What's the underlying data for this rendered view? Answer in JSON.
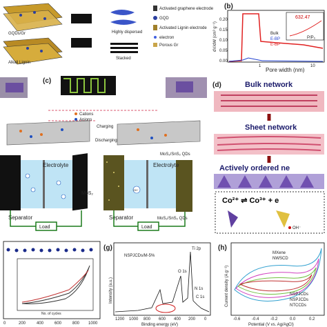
{
  "panels": {
    "a": {
      "labels": [
        "GQDs/Gr",
        "Alkali Lignin",
        "Highly dispersed",
        "Stacked"
      ],
      "legend": [
        "Activated graphene electrode",
        "GQD",
        "Activated Lignin electrode",
        "electron",
        "Porous Gr"
      ]
    },
    "b": {
      "tag": "(b)",
      "y_axis": "dV/dW (cm³ g⁻¹)",
      "x_axis": "Pore width (nm)",
      "x_ticks": [
        "1",
        "10"
      ],
      "y_ticks": [
        "0.00",
        "0.05",
        "0.10",
        "0.15",
        "0.20"
      ],
      "legend": [
        "Bulk",
        "E-BP",
        "E-BP"
      ],
      "inset_value": "632.47",
      "inset_axis": "P/P₀"
    },
    "c": {
      "tag": "(c)",
      "labels": [
        "Cations",
        "Anions",
        "Charging",
        "Discharging"
      ]
    },
    "d": {
      "tag": "(d)",
      "labels": [
        "Bulk network",
        "Sheet network",
        "Actively ordered ne"
      ],
      "reaction": "Co²⁺ ⇌ Co³⁺ + e",
      "ion": "OH⁻"
    },
    "e": {
      "left": [
        "Electrolyte",
        "Separator",
        "Load",
        "MoS₂"
      ],
      "right": [
        "Electrolyte",
        "MoS₂/SnS₂ QDs",
        "Separator",
        "Load",
        "MoS₂/SnS₂ QDs"
      ],
      "ion": "OH⁻"
    },
    "f": {
      "x_ticks": [
        "0",
        "200",
        "400",
        "600",
        "800",
        "1000"
      ],
      "inset_x_axis": "No. of cycles"
    },
    "g": {
      "tag": "(g)",
      "sample": "NSPJCDs/M-5%",
      "y_axis": "Intensity (a.u.)",
      "x_axis": "Binding energy (eV)",
      "x_ticks": [
        "1200",
        "1000",
        "800",
        "600",
        "400",
        "200",
        "0"
      ],
      "peaks": [
        "Ti 2p",
        "O 1s",
        "N 1s",
        "C 1s"
      ]
    },
    "h": {
      "tag": "(h)",
      "legend": [
        "MXene",
        "NWSCD",
        "NSPJCDs",
        "NSPJCDs",
        "NTCCDs"
      ],
      "y_axis": "Current density (A g⁻¹)",
      "x_axis": "Potential (V vs. Ag/AgCl)",
      "x_ticks": [
        "-0.6",
        "-0.4",
        "-0.2",
        "0.0",
        "0.2"
      ]
    }
  }
}
